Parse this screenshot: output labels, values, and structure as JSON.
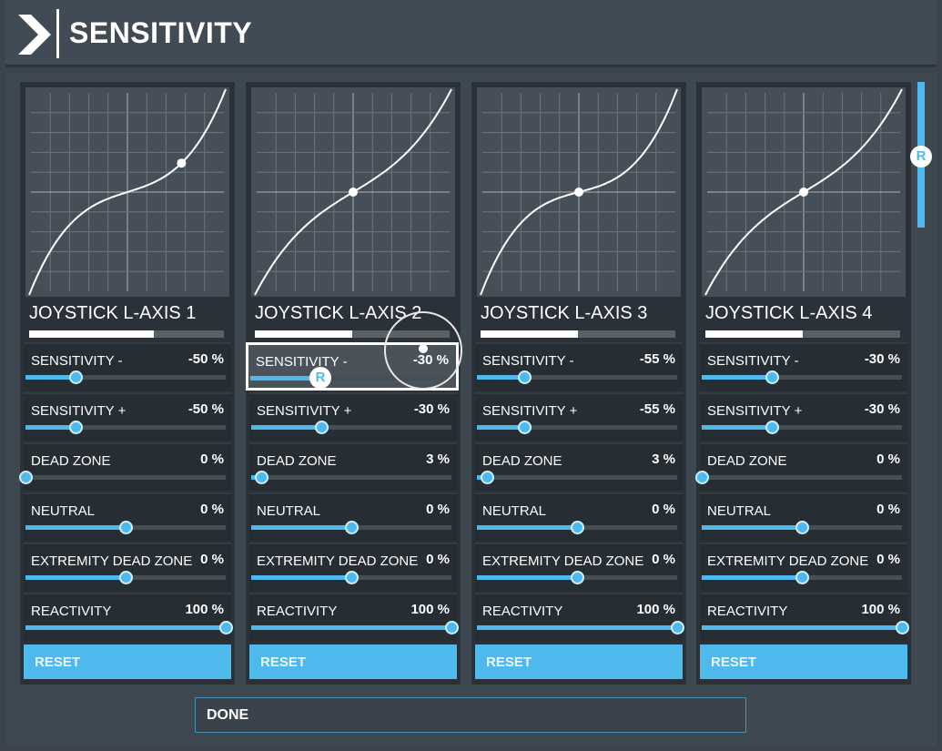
{
  "header": {
    "title": "SENSITIVITY",
    "icon": "chevron-right-icon"
  },
  "colors": {
    "accent": "#4fb8ec",
    "panel": "#2a3138",
    "background": "#3e4851"
  },
  "panels": [
    {
      "title": "JOYSTICK L-AXIS 1",
      "axis_level": 0.64,
      "input_position": 0.55,
      "curve_strength": 0.7,
      "rows": [
        {
          "label": "SENSITIVITY -",
          "value": "-50 %",
          "level": 0.25
        },
        {
          "label": "SENSITIVITY +",
          "value": "-50 %",
          "level": 0.25
        },
        {
          "label": "DEAD ZONE",
          "value": "0 %",
          "level": 0
        },
        {
          "label": "NEUTRAL",
          "value": "0 %",
          "level": 0.5
        },
        {
          "label": "EXTREMITY DEAD ZONE",
          "value": "0 %",
          "level": 0.5
        },
        {
          "label": "REACTIVITY",
          "value": "100 %",
          "level": 1
        }
      ],
      "reset": "RESET"
    },
    {
      "title": "JOYSTICK L-AXIS 2",
      "axis_level": 0.5,
      "input_position": 0,
      "curve_strength": 0.42,
      "rows": [
        {
          "label": "SENSITIVITY -",
          "value": "-30 %",
          "level": 0.35,
          "focused": true
        },
        {
          "label": "SENSITIVITY +",
          "value": "-30 %",
          "level": 0.35
        },
        {
          "label": "DEAD ZONE",
          "value": "3 %",
          "level": 0.05
        },
        {
          "label": "NEUTRAL",
          "value": "0 %",
          "level": 0.5
        },
        {
          "label": "EXTREMITY DEAD ZONE",
          "value": "0 %",
          "level": 0.5
        },
        {
          "label": "REACTIVITY",
          "value": "100 %",
          "level": 1
        }
      ],
      "reset": "RESET"
    },
    {
      "title": "JOYSTICK L-AXIS 3",
      "axis_level": 0.5,
      "input_position": 0,
      "curve_strength": 0.75,
      "rows": [
        {
          "label": "SENSITIVITY -",
          "value": "-55 %",
          "level": 0.235
        },
        {
          "label": "SENSITIVITY +",
          "value": "-55 %",
          "level": 0.235
        },
        {
          "label": "DEAD ZONE",
          "value": "3 %",
          "level": 0.05
        },
        {
          "label": "NEUTRAL",
          "value": "0 %",
          "level": 0.5
        },
        {
          "label": "EXTREMITY DEAD ZONE",
          "value": "0 %",
          "level": 0.5
        },
        {
          "label": "REACTIVITY",
          "value": "100 %",
          "level": 1
        }
      ],
      "reset": "RESET"
    },
    {
      "title": "JOYSTICK L-AXIS 4",
      "axis_level": 0.5,
      "input_position": 0,
      "curve_strength": 0.42,
      "rows": [
        {
          "label": "SENSITIVITY -",
          "value": "-30 %",
          "level": 0.35
        },
        {
          "label": "SENSITIVITY +",
          "value": "-30 %",
          "level": 0.35
        },
        {
          "label": "DEAD ZONE",
          "value": "0 %",
          "level": 0
        },
        {
          "label": "NEUTRAL",
          "value": "0 %",
          "level": 0.5
        },
        {
          "label": "EXTREMITY DEAD ZONE",
          "value": "0 %",
          "level": 0.5
        },
        {
          "label": "REACTIVITY",
          "value": "100 %",
          "level": 1
        }
      ],
      "reset": "RESET"
    }
  ],
  "focus_badge": "R",
  "scrollbar": {
    "badge": "R"
  },
  "done": "DONE"
}
